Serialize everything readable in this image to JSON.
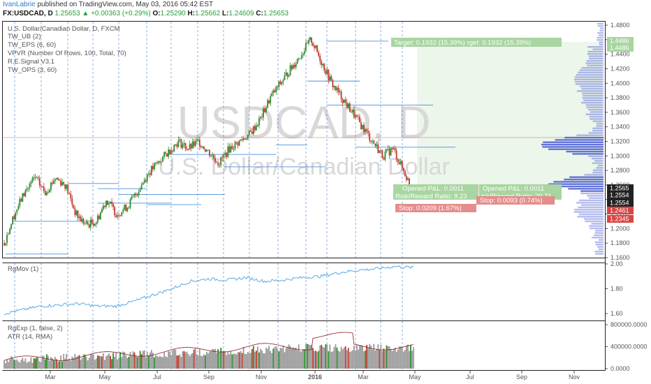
{
  "header": {
    "author": "IvanLabrie",
    "published": "published on TradingView.com, May 03, 2016 05:42 EST",
    "symbol": "FX:USDCAD, D",
    "last": "1.25653",
    "change": "▲ +0.00363 (+0.29%)",
    "o_label": "O:",
    "o": "1.25290",
    "h_label": "H:",
    "h": "1.25662",
    "l_label": "L:",
    "l": "1.24609",
    "c_label": "C:",
    "c": "1.25653"
  },
  "main_pane": {
    "legend": [
      "U.S. Dollar/Canadian Dollar, D, FXCM",
      "TW_UB (2)",
      "TW_EPS (6, 60)",
      "VPVR (Number Of Rows, 100, Total, 70)",
      "R.E.Signal V3.1",
      "TW_OPS (3, 60)"
    ],
    "watermark_symbol": "USDCAD, D",
    "watermark_name": "U.S. Dollar/Canadian Dollar",
    "target_label": "Target: 0.1932 (15.39%)  rget: 0.1932 (15.39%)",
    "opened_pl_1": "Opened P&L: 0.0011",
    "opened_pl_2": "Opened P&L: 0.0011",
    "rr_label_1": "Risk/Reward Ratio: 9.23",
    "rr_label_2": "isk/Reward Ratio: 20.71",
    "stop_label_1": "Stop: 0.0209 (1.67%)",
    "stop_label_2": "Stop: 0.0093 (0.74%)"
  },
  "rgmov_pane": {
    "legend": "RgMov (1)"
  },
  "rgexp_pane": {
    "legend_1": "RgExp (1, false, 2)",
    "legend_2": "ATR (14, RMA)"
  },
  "colors": {
    "up": "#2e8b2e",
    "down": "#c0392b",
    "line": "#5aa9e6",
    "vpvr": "#5b6bd6",
    "grid": "#2d6fd1",
    "target_green": "#a8d5a0",
    "stop_red": "#e58c8c"
  },
  "chart_data": [
    {
      "type": "candlestick",
      "title": "U.S. Dollar/Canadian Dollar, D, FXCM",
      "x_ticks": [
        "Mar",
        "May",
        "Jul",
        "Sep",
        "Nov",
        "2016",
        "Mar",
        "May",
        "Jul",
        "Sep",
        "Nov"
      ],
      "y_ticks": [
        "1.4800",
        "1.4600",
        "1.4400",
        "1.4200",
        "1.4000",
        "1.3800",
        "1.3600",
        "1.3400",
        "1.3200",
        "1.3000",
        "1.2800",
        "1.2600",
        "1.2400",
        "1.2200",
        "1.2000",
        "1.1800",
        "1.1600"
      ],
      "ylim": [
        1.16,
        1.48
      ],
      "price_tags": [
        {
          "value": 1.4486,
          "label": "1.4486",
          "color": "#a8d5a0"
        },
        {
          "value": 1.4486,
          "label": "1.4486",
          "color": "#a8d5a0"
        },
        {
          "value": 1.2565,
          "label": "1.2565",
          "color": "#222222"
        },
        {
          "value": 1.2554,
          "label": "1.2554",
          "color": "#222222"
        },
        {
          "value": 1.2554,
          "label": "1.2554",
          "color": "#222222"
        },
        {
          "value": 1.2461,
          "label": "1.2461",
          "color": "#d94444"
        },
        {
          "value": 1.2345,
          "label": "1.2345",
          "color": "#d94444"
        }
      ],
      "close_path": [
        [
          0,
          1.18
        ],
        [
          3,
          1.22
        ],
        [
          6,
          1.25
        ],
        [
          9,
          1.27
        ],
        [
          12,
          1.25
        ],
        [
          15,
          1.27
        ],
        [
          18,
          1.26
        ],
        [
          21,
          1.22
        ],
        [
          24,
          1.205
        ],
        [
          27,
          1.21
        ],
        [
          30,
          1.24
        ],
        [
          33,
          1.22
        ],
        [
          36,
          1.23
        ],
        [
          39,
          1.25
        ],
        [
          42,
          1.275
        ],
        [
          45,
          1.29
        ],
        [
          48,
          1.305
        ],
        [
          51,
          1.32
        ],
        [
          54,
          1.31
        ],
        [
          57,
          1.32
        ],
        [
          60,
          1.305
        ],
        [
          63,
          1.29
        ],
        [
          66,
          1.31
        ],
        [
          69,
          1.32
        ],
        [
          72,
          1.33
        ],
        [
          75,
          1.35
        ],
        [
          78,
          1.38
        ],
        [
          81,
          1.4
        ],
        [
          84,
          1.42
        ],
        [
          87,
          1.44
        ],
        [
          90,
          1.46
        ],
        [
          93,
          1.43
        ],
        [
          96,
          1.4
        ],
        [
          99,
          1.38
        ],
        [
          102,
          1.36
        ],
        [
          105,
          1.34
        ],
        [
          108,
          1.32
        ],
        [
          111,
          1.3
        ],
        [
          114,
          1.31
        ],
        [
          117,
          1.28
        ],
        [
          120,
          1.25
        ]
      ]
    },
    {
      "type": "line",
      "title": "RgMov (1)",
      "y_ticks": [
        "2.00",
        "1.80",
        "1.60"
      ],
      "ylim": [
        1.55,
        2.0
      ],
      "series": [
        {
          "values": [
            1.6,
            1.63,
            1.66,
            1.67,
            1.68,
            1.66,
            1.66,
            1.7,
            1.75,
            1.8,
            1.86,
            1.88,
            1.87,
            1.89,
            1.86,
            1.87,
            1.89,
            1.9,
            1.93,
            1.95,
            1.96,
            1.98,
            1.97
          ]
        }
      ]
    },
    {
      "type": "bar",
      "title": "RgExp (1, false, 2)",
      "y_ticks": [
        "800000.0000",
        "400000.0000",
        "0.0000"
      ],
      "ylim": [
        0,
        800000
      ]
    }
  ]
}
